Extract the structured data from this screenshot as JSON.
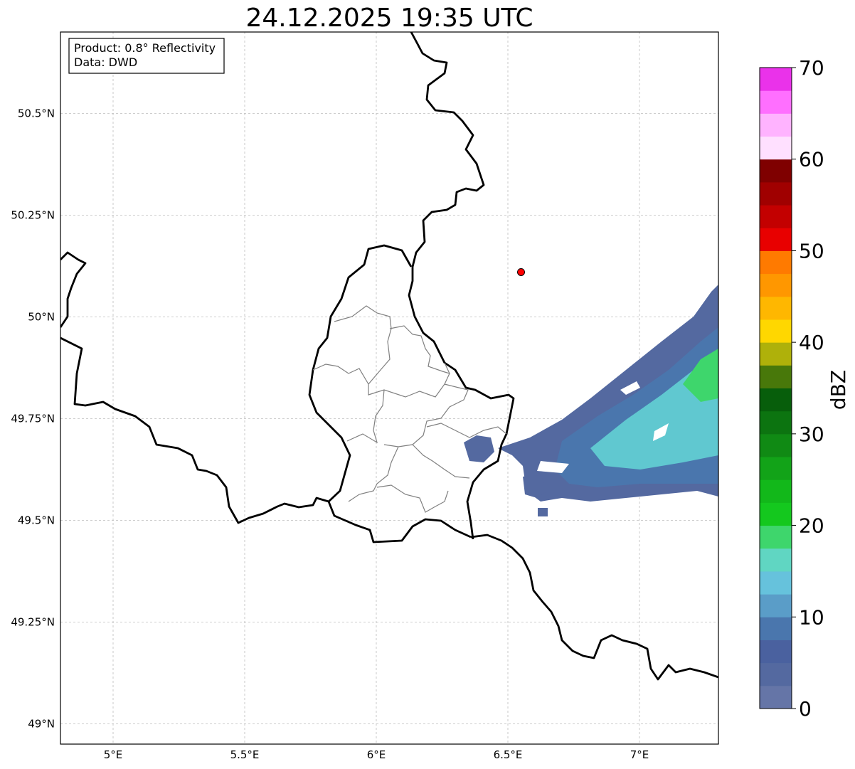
{
  "title": "24.12.2025 19:35 UTC",
  "info_box": {
    "product": "Product: 0.8° Reflectivity",
    "data_source": "Data: DWD"
  },
  "map": {
    "lon_range": [
      4.8,
      7.3
    ],
    "lat_range": [
      48.95,
      50.7
    ],
    "lon_ticks": [
      {
        "value": 5.0,
        "label": "5°E"
      },
      {
        "value": 5.5,
        "label": "5.5°E"
      },
      {
        "value": 6.0,
        "label": "6°E"
      },
      {
        "value": 6.5,
        "label": "6.5°E"
      },
      {
        "value": 7.0,
        "label": "7°E"
      }
    ],
    "lat_ticks": [
      {
        "value": 49.0,
        "label": "49°N"
      },
      {
        "value": 49.25,
        "label": "49.25°N"
      },
      {
        "value": 49.5,
        "label": "49.5°N"
      },
      {
        "value": 49.75,
        "label": "49.75°N"
      },
      {
        "value": 50.0,
        "label": "50°N"
      },
      {
        "value": 50.25,
        "label": "50.25°N"
      },
      {
        "value": 50.5,
        "label": "50.5°N"
      }
    ],
    "gridlines": true,
    "marker": {
      "lon": 6.55,
      "lat": 50.11,
      "color": "#ff0000"
    }
  },
  "colorbar": {
    "label": "dBZ",
    "min": 0,
    "max": 70,
    "ticks": [
      {
        "value": 0,
        "label": "0"
      },
      {
        "value": 10,
        "label": "10"
      },
      {
        "value": 20,
        "label": "20"
      },
      {
        "value": 30,
        "label": "30"
      },
      {
        "value": 40,
        "label": "40"
      },
      {
        "value": 50,
        "label": "50"
      },
      {
        "value": 60,
        "label": "60"
      },
      {
        "value": 70,
        "label": "70"
      }
    ],
    "colors": [
      "#6575a7",
      "#5469a0",
      "#4a619f",
      "#4a76ad",
      "#5a9dc8",
      "#66c2dc",
      "#60d6c2",
      "#3ed66c",
      "#14c81e",
      "#12b81a",
      "#12a318",
      "#108a14",
      "#0c7410",
      "#075e0b",
      "#48780a",
      "#afb10a",
      "#ffd700",
      "#ffb700",
      "#ff9700",
      "#ff7a00",
      "#e80000",
      "#c30000",
      "#a00000",
      "#7f0000",
      "#ffe0ff",
      "#ffb3ff",
      "#ff6fff",
      "#ea32ea"
    ]
  }
}
